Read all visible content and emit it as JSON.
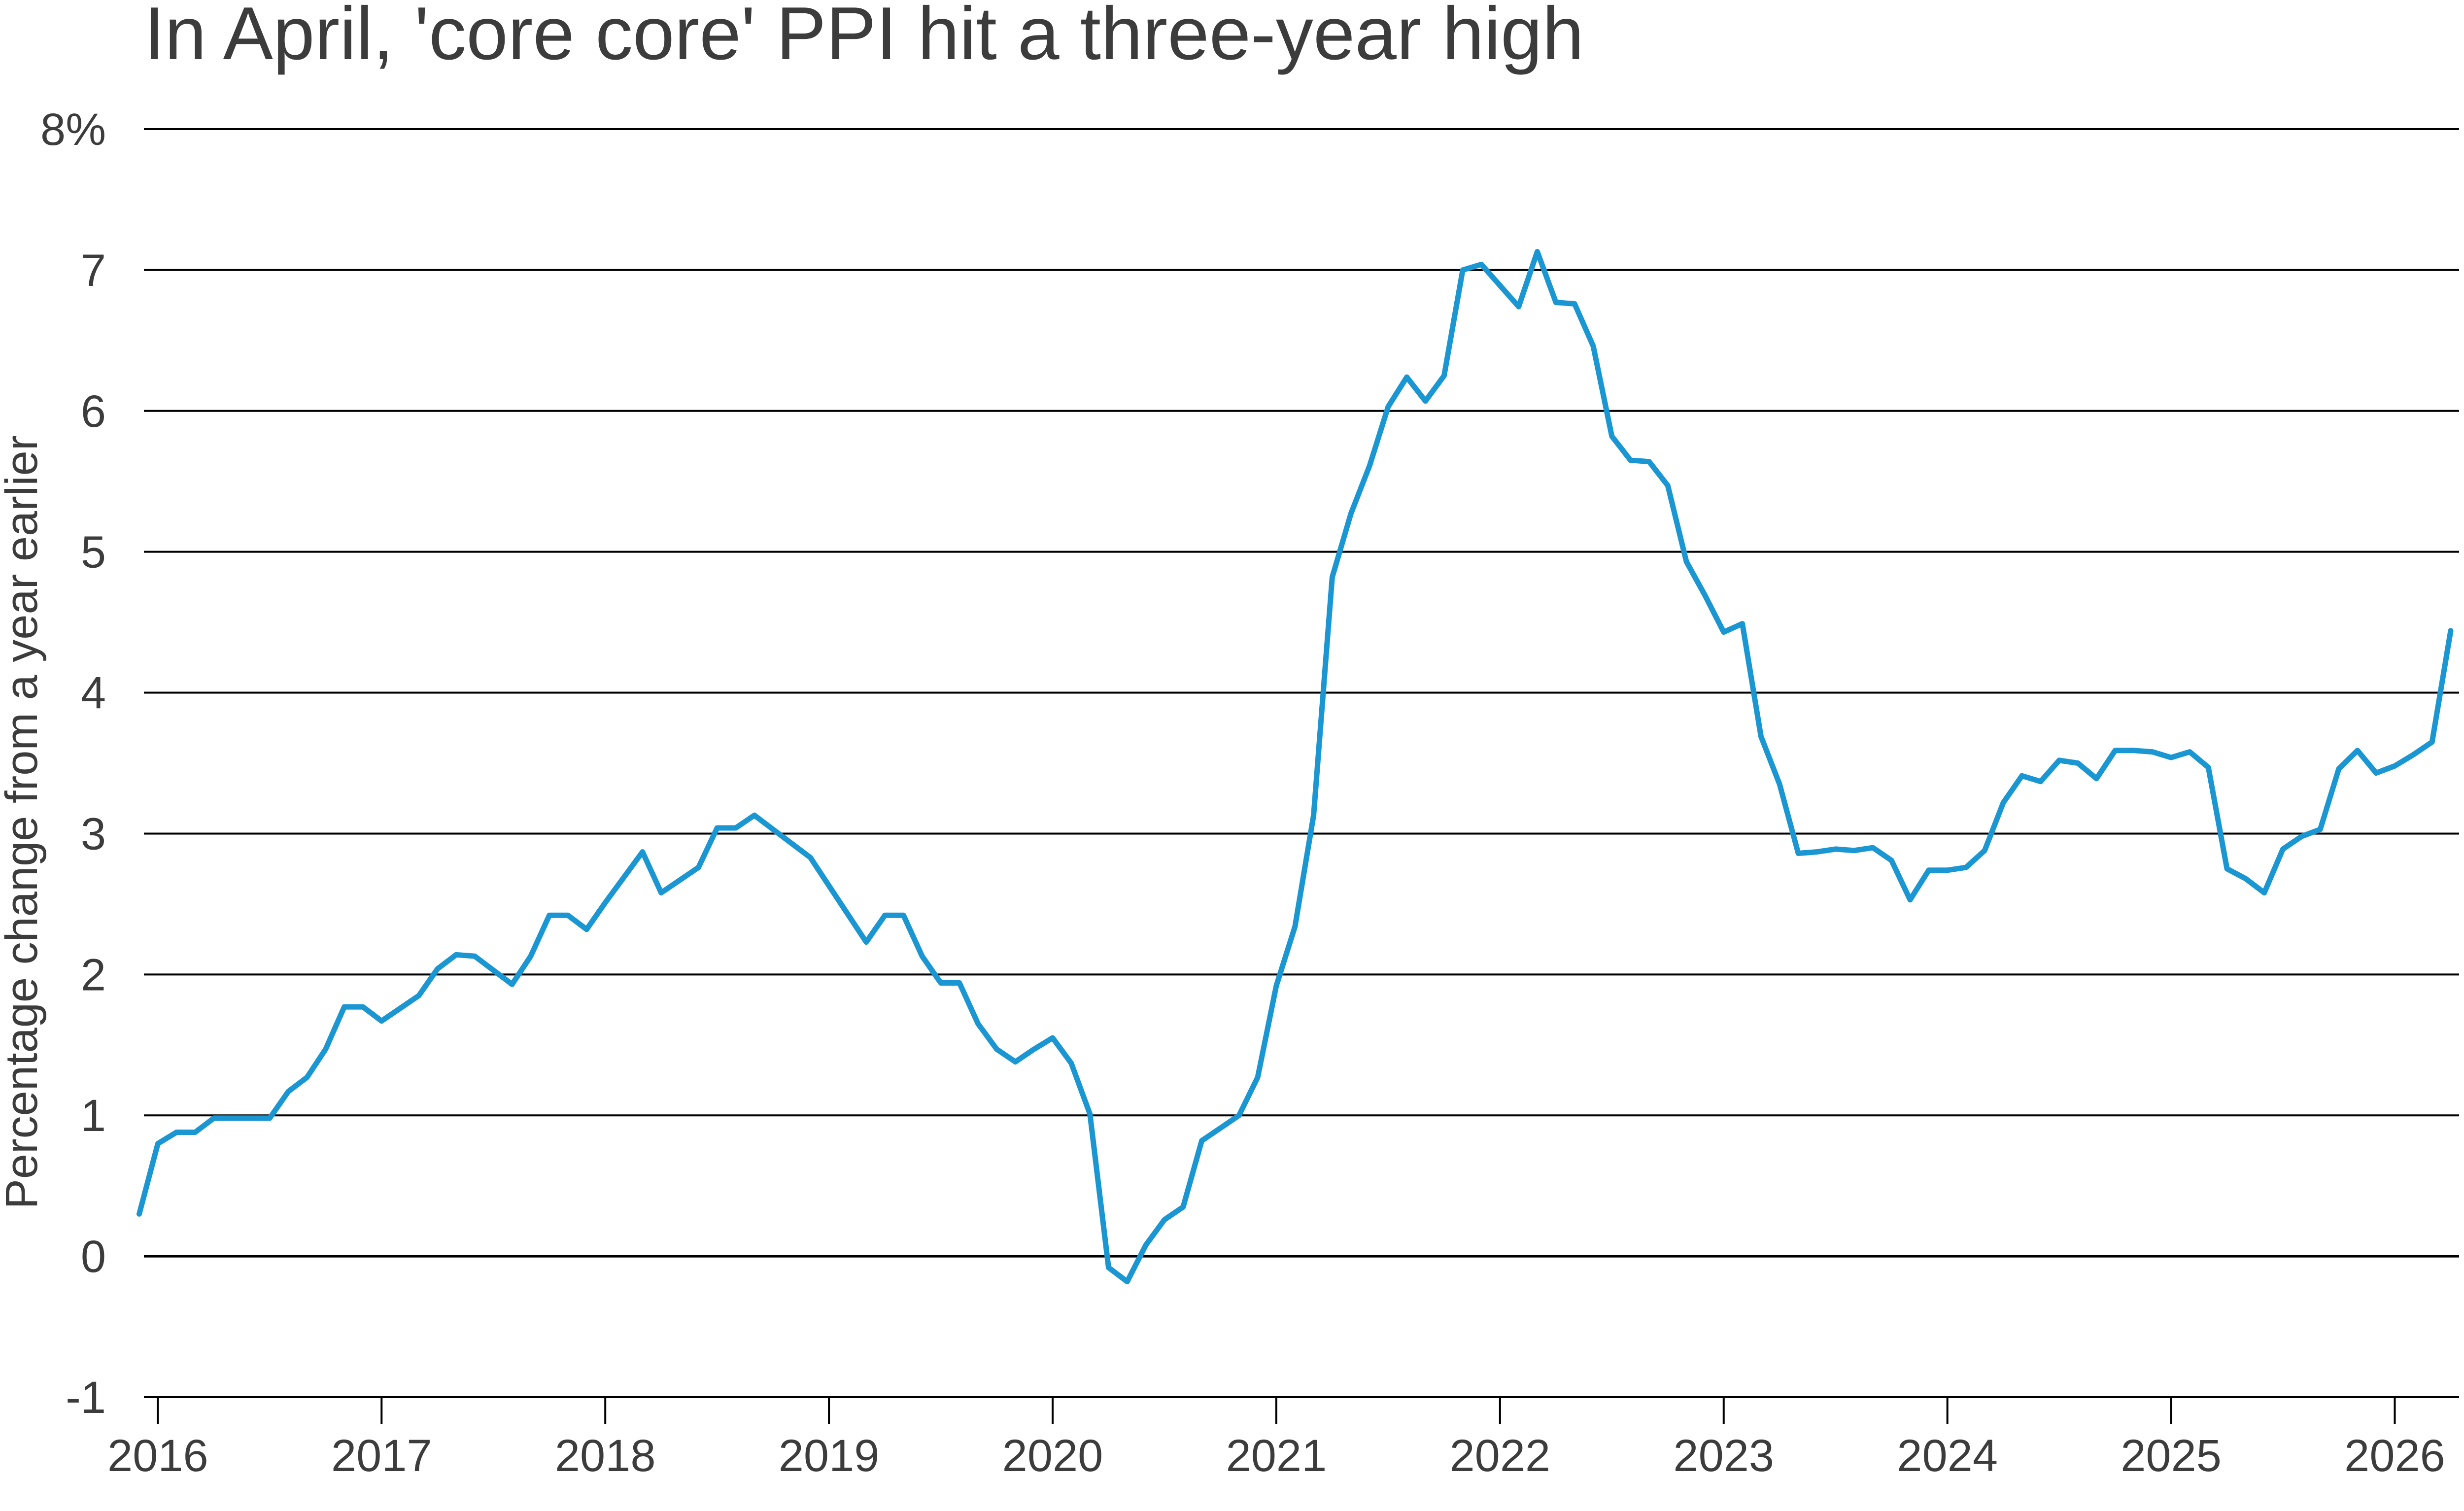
{
  "title": "In April, 'core core' PPI hit a three-year high",
  "colors": {
    "series": "#1a96d3",
    "grid": "#000000",
    "text": "#3c3c3c"
  },
  "chart_data": {
    "type": "line",
    "title": "In April, 'core core' PPI hit a three-year high",
    "xlabel": "",
    "ylabel": "Percentage change from a year earlier",
    "ylim": [
      -1,
      8
    ],
    "xlim": [
      "2015-12",
      "2026-05"
    ],
    "y_ticks": [
      {
        "value": 8,
        "label": "8%"
      },
      {
        "value": 7,
        "label": "7"
      },
      {
        "value": 6,
        "label": "6"
      },
      {
        "value": 5,
        "label": "5"
      },
      {
        "value": 4,
        "label": "4"
      },
      {
        "value": 3,
        "label": "3"
      },
      {
        "value": 2,
        "label": "2"
      },
      {
        "value": 1,
        "label": "1"
      },
      {
        "value": 0,
        "label": "0"
      },
      {
        "value": -1,
        "label": "-1"
      }
    ],
    "x_ticks": [
      {
        "value": "2016-01",
        "label": "2016"
      },
      {
        "value": "2017-01",
        "label": "2017"
      },
      {
        "value": "2018-01",
        "label": "2018"
      },
      {
        "value": "2019-01",
        "label": "2019"
      },
      {
        "value": "2020-01",
        "label": "2020"
      },
      {
        "value": "2021-01",
        "label": "2021"
      },
      {
        "value": "2022-01",
        "label": "2022"
      },
      {
        "value": "2023-01",
        "label": "2023"
      },
      {
        "value": "2024-01",
        "label": "2024"
      },
      {
        "value": "2025-01",
        "label": "2025"
      },
      {
        "value": "2026-01",
        "label": "2026"
      }
    ],
    "grid": true,
    "legend": "none",
    "series": [
      {
        "x": [
          "2015-12",
          "2016-01",
          "2016-02",
          "2016-03",
          "2016-04",
          "2016-05",
          "2016-06",
          "2016-07",
          "2016-08",
          "2016-09",
          "2016-10",
          "2016-11",
          "2016-12",
          "2017-01",
          "2017-02",
          "2017-03",
          "2017-04",
          "2017-05",
          "2017-06",
          "2017-07",
          "2017-08",
          "2017-09",
          "2017-10",
          "2017-11",
          "2017-12",
          "2018-01",
          "2018-02",
          "2018-03",
          "2018-04",
          "2018-05",
          "2018-06",
          "2018-07",
          "2018-08",
          "2018-09",
          "2018-10",
          "2018-11",
          "2018-12",
          "2019-01",
          "2019-02",
          "2019-03",
          "2019-04",
          "2019-05",
          "2019-06",
          "2019-07",
          "2019-08",
          "2019-09",
          "2019-10",
          "2019-11",
          "2019-12",
          "2020-01",
          "2020-02",
          "2020-03",
          "2020-04",
          "2020-05",
          "2020-06",
          "2020-07",
          "2020-08",
          "2020-09",
          "2020-10",
          "2020-11",
          "2020-12",
          "2021-01",
          "2021-02",
          "2021-03",
          "2021-04",
          "2021-05",
          "2021-06",
          "2021-07",
          "2021-08",
          "2021-09",
          "2021-10",
          "2021-11",
          "2021-12",
          "2022-01",
          "2022-02",
          "2022-03",
          "2022-04",
          "2022-05",
          "2022-06",
          "2022-07",
          "2022-08",
          "2022-09",
          "2022-10",
          "2022-11",
          "2022-12",
          "2023-01",
          "2023-02",
          "2023-03",
          "2023-04",
          "2023-05",
          "2023-06",
          "2023-07",
          "2023-08",
          "2023-09",
          "2023-10",
          "2023-11",
          "2023-12",
          "2024-01",
          "2024-02",
          "2024-03",
          "2024-04",
          "2024-05",
          "2024-06",
          "2024-07",
          "2024-08",
          "2024-09",
          "2024-10",
          "2024-11",
          "2024-12",
          "2025-01",
          "2025-02",
          "2025-03",
          "2025-04",
          "2025-05",
          "2025-06",
          "2025-07",
          "2025-08",
          "2025-09",
          "2025-10",
          "2025-11",
          "2025-12",
          "2026-01",
          "2026-02",
          "2026-03",
          "2026-04"
        ],
        "values": [
          0.3,
          0.8,
          0.88,
          0.88,
          0.98,
          0.98,
          0.98,
          0.98,
          1.17,
          1.27,
          1.47,
          1.77,
          1.77,
          1.67,
          1.76,
          1.85,
          2.04,
          2.14,
          2.13,
          2.03,
          1.93,
          2.13,
          2.42,
          2.42,
          2.32,
          2.51,
          2.69,
          2.87,
          2.58,
          2.67,
          2.76,
          3.04,
          3.04,
          3.13,
          3.03,
          2.93,
          2.83,
          2.63,
          2.43,
          2.23,
          2.42,
          2.42,
          2.13,
          1.94,
          1.94,
          1.65,
          1.47,
          1.38,
          1.47,
          1.55,
          1.37,
          1.01,
          -0.08,
          -0.18,
          0.08,
          0.26,
          0.35,
          0.82,
          0.91,
          1.0,
          1.27,
          1.92,
          2.34,
          3.13,
          4.82,
          5.27,
          5.61,
          6.03,
          6.24,
          6.07,
          6.25,
          7.0,
          7.04,
          6.89,
          6.74,
          7.13,
          6.77,
          6.76,
          6.46,
          5.82,
          5.65,
          5.64,
          5.47,
          4.93,
          4.69,
          4.43,
          4.49,
          3.69,
          3.35,
          2.86,
          2.87,
          2.89,
          2.88,
          2.9,
          2.81,
          2.53,
          2.74,
          2.74,
          2.76,
          2.88,
          3.22,
          3.41,
          3.37,
          3.52,
          3.5,
          3.39,
          3.59,
          3.59,
          3.58,
          3.54,
          3.58,
          3.47,
          2.75,
          2.68,
          2.58,
          2.89,
          2.98,
          3.03,
          3.46,
          3.59,
          3.43,
          3.48,
          3.56,
          3.65,
          4.44
        ]
      }
    ]
  }
}
